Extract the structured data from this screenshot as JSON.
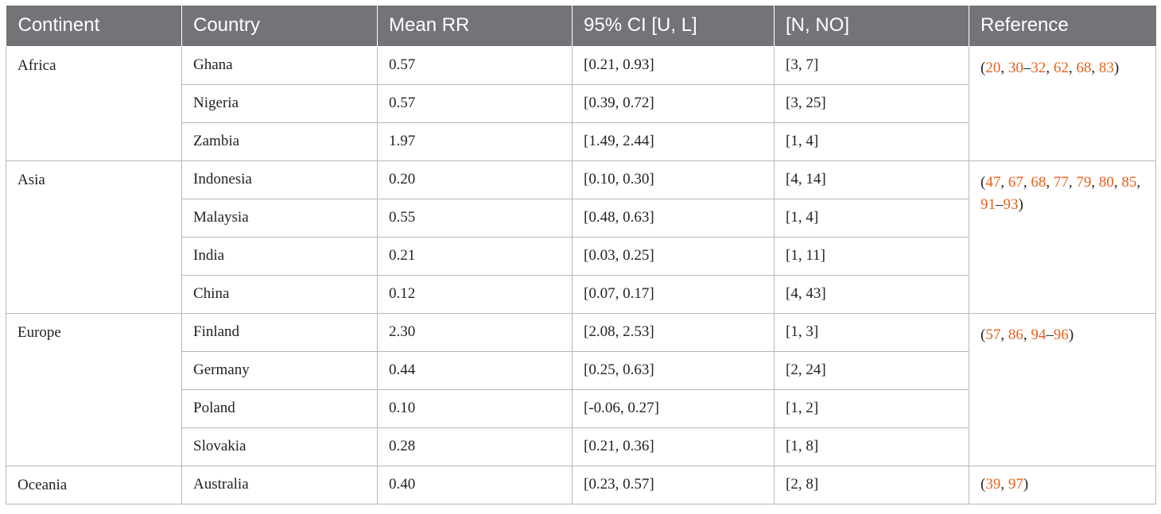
{
  "table": {
    "headers": [
      "Continent",
      "Country",
      "Mean RR",
      "95% CI [U, L]",
      "[N, NO]",
      "Reference"
    ],
    "groups": [
      {
        "continent": "Africa",
        "rows": [
          {
            "country": "Ghana",
            "mean_rr": "0.57",
            "ci": "[0.21, 0.93]",
            "n_no": "[3, 7]"
          },
          {
            "country": "Nigeria",
            "mean_rr": "0.57",
            "ci": "[0.39, 0.72]",
            "n_no": "[3, 25]"
          },
          {
            "country": "Zambia",
            "mean_rr": "1.97",
            "ci": "[1.49, 2.44]",
            "n_no": "[1, 4]"
          }
        ],
        "references": [
          {
            "text": "("
          },
          {
            "text": "20",
            "link": true
          },
          {
            "text": ", "
          },
          {
            "text": "30",
            "link": true
          },
          {
            "text": "–"
          },
          {
            "text": "32",
            "link": true
          },
          {
            "text": ", "
          },
          {
            "text": "62",
            "link": true
          },
          {
            "text": ", "
          },
          {
            "text": "68",
            "link": true
          },
          {
            "text": ", "
          },
          {
            "text": "83",
            "link": true
          },
          {
            "text": ")"
          }
        ]
      },
      {
        "continent": "Asia",
        "rows": [
          {
            "country": "Indonesia",
            "mean_rr": "0.20",
            "ci": "[0.10, 0.30]",
            "n_no": "[4, 14]"
          },
          {
            "country": "Malaysia",
            "mean_rr": "0.55",
            "ci": "[0.48, 0.63]",
            "n_no": "[1, 4]"
          },
          {
            "country": "India",
            "mean_rr": "0.21",
            "ci": "[0.03, 0.25]",
            "n_no": "[1, 11]"
          },
          {
            "country": "China",
            "mean_rr": "0.12",
            "ci": "[0.07, 0.17]",
            "n_no": "[4, 43]"
          }
        ],
        "references": [
          {
            "text": "("
          },
          {
            "text": "47",
            "link": true
          },
          {
            "text": ", "
          },
          {
            "text": "67",
            "link": true
          },
          {
            "text": ", "
          },
          {
            "text": "68",
            "link": true
          },
          {
            "text": ", "
          },
          {
            "text": "77",
            "link": true
          },
          {
            "text": ", "
          },
          {
            "text": "79",
            "link": true
          },
          {
            "text": ", "
          },
          {
            "text": "80",
            "link": true
          },
          {
            "text": ", "
          },
          {
            "text": "85",
            "link": true
          },
          {
            "text": ", "
          },
          {
            "text": "91",
            "link": true
          },
          {
            "text": "–"
          },
          {
            "text": "93",
            "link": true
          },
          {
            "text": ")"
          }
        ]
      },
      {
        "continent": "Europe",
        "rows": [
          {
            "country": "Finland",
            "mean_rr": "2.30",
            "ci": "[2.08, 2.53]",
            "n_no": "[1, 3]"
          },
          {
            "country": "Germany",
            "mean_rr": "0.44",
            "ci": "[0.25, 0.63]",
            "n_no": "[2, 24]"
          },
          {
            "country": "Poland",
            "mean_rr": "0.10",
            "ci": "[-0.06, 0.27]",
            "n_no": "[1, 2]"
          },
          {
            "country": "Slovakia",
            "mean_rr": "0.28",
            "ci": "[0.21, 0.36]",
            "n_no": "[1, 8]"
          }
        ],
        "references": [
          {
            "text": "("
          },
          {
            "text": "57",
            "link": true
          },
          {
            "text": ", "
          },
          {
            "text": "86",
            "link": true
          },
          {
            "text": ", "
          },
          {
            "text": "94",
            "link": true
          },
          {
            "text": "–"
          },
          {
            "text": "96",
            "link": true
          },
          {
            "text": ")"
          }
        ]
      },
      {
        "continent": "Oceania",
        "rows": [
          {
            "country": "Australia",
            "mean_rr": "0.40",
            "ci": "[0.23, 0.57]",
            "n_no": "[2, 8]"
          }
        ],
        "references": [
          {
            "text": "("
          },
          {
            "text": "39",
            "link": true
          },
          {
            "text": ", "
          },
          {
            "text": "97",
            "link": true
          },
          {
            "text": ")"
          }
        ]
      }
    ]
  },
  "colors": {
    "header_bg": "#737478",
    "header_text": "#ffffff",
    "body_text": "#222222",
    "reference_link": "#e8601c",
    "grid": "#b8b8b8"
  }
}
